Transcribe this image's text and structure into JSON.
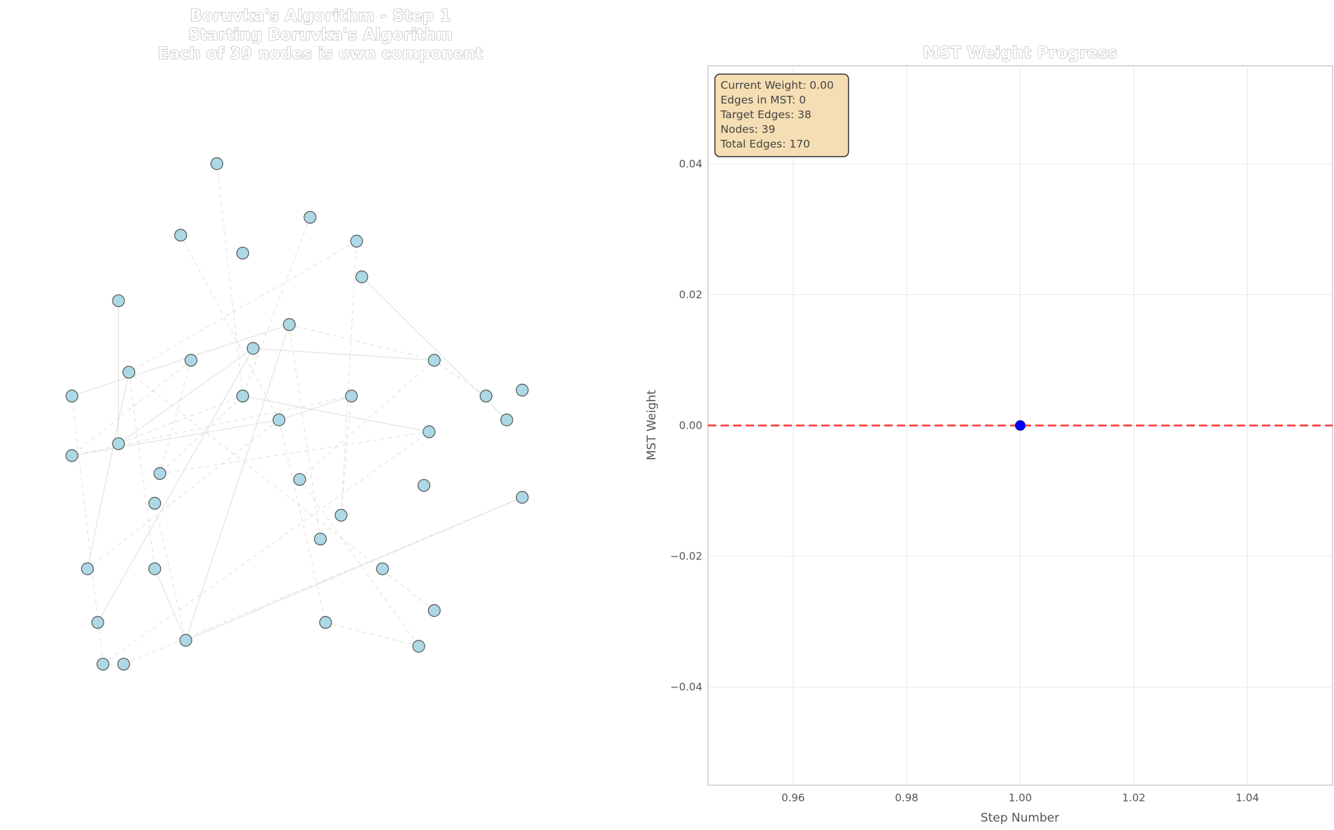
{
  "chart_data": [
    {
      "type": "network",
      "title_lines": [
        "Boruvka's Algorithm - Step 1",
        "Starting Boruvka's Algorithm",
        "Each of 39 nodes is own component"
      ],
      "node_color": "#add8e6",
      "edge_color": "#d3d3d3",
      "nodes": [
        [
          0.08,
          0.9
        ],
        [
          0.07,
          0.83
        ],
        [
          0.24,
          0.86
        ],
        [
          0.3,
          0.06
        ],
        [
          0.48,
          0.15
        ],
        [
          0.58,
          0.25
        ],
        [
          0.86,
          0.49
        ],
        [
          0.89,
          0.44
        ],
        [
          0.71,
          0.51
        ],
        [
          0.72,
          0.39
        ],
        [
          0.82,
          0.45
        ],
        [
          0.51,
          0.83
        ],
        [
          0.72,
          0.81
        ],
        [
          0.57,
          0.19
        ],
        [
          0.89,
          0.62
        ],
        [
          0.35,
          0.21
        ],
        [
          0.44,
          0.33
        ],
        [
          0.23,
          0.18
        ],
        [
          0.5,
          0.69
        ],
        [
          0.69,
          0.87
        ],
        [
          0.18,
          0.63
        ],
        [
          0.25,
          0.39
        ],
        [
          0.37,
          0.37
        ],
        [
          0.02,
          0.45
        ],
        [
          0.7,
          0.6
        ],
        [
          0.02,
          0.55
        ],
        [
          0.18,
          0.74
        ],
        [
          0.11,
          0.29
        ],
        [
          0.19,
          0.58
        ],
        [
          0.46,
          0.59
        ],
        [
          0.05,
          0.74
        ],
        [
          0.12,
          0.9
        ],
        [
          0.62,
          0.74
        ],
        [
          0.54,
          0.65
        ],
        [
          0.35,
          0.45
        ],
        [
          0.42,
          0.49
        ],
        [
          0.13,
          0.41
        ],
        [
          0.11,
          0.53
        ],
        [
          0.56,
          0.45
        ]
      ],
      "edges": [
        [
          27,
          37
        ],
        [
          17,
          35
        ],
        [
          35,
          11
        ],
        [
          35,
          38
        ],
        [
          13,
          36
        ],
        [
          0,
          23
        ],
        [
          2,
          26
        ],
        [
          37,
          34
        ],
        [
          21,
          28
        ],
        [
          22,
          9
        ],
        [
          38,
          33
        ],
        [
          35,
          30
        ],
        [
          36,
          30
        ],
        [
          29,
          9
        ],
        [
          38,
          25
        ],
        [
          25,
          35
        ],
        [
          34,
          28
        ],
        [
          28,
          8
        ],
        [
          34,
          8
        ],
        [
          18,
          16
        ],
        [
          2,
          20
        ],
        [
          22,
          1
        ],
        [
          0,
          8
        ],
        [
          12,
          36
        ],
        [
          2,
          14
        ],
        [
          3,
          34
        ],
        [
          9,
          16
        ],
        [
          6,
          5
        ],
        [
          10,
          9
        ],
        [
          21,
          25
        ],
        [
          37,
          22
        ],
        [
          13,
          33
        ],
        [
          29,
          19
        ],
        [
          16,
          2
        ],
        [
          36,
          26
        ],
        [
          31,
          14
        ],
        [
          23,
          16
        ],
        [
          4,
          34
        ],
        [
          19,
          11
        ]
      ]
    },
    {
      "type": "line",
      "title": "MST Weight Progress",
      "xlabel": "Step Number",
      "ylabel": "MST Weight",
      "x": [
        1.0
      ],
      "y": [
        0.0
      ],
      "point_color": "#0000ff",
      "reference_line": {
        "y": 0.0,
        "style": "dashed",
        "color": "#ff0000"
      },
      "xlim": [
        0.945,
        1.055
      ],
      "ylim": [
        -0.055,
        0.055
      ],
      "xticks": [
        "0.96",
        "0.98",
        "1.00",
        "1.02",
        "1.04"
      ],
      "yticks": [
        "−0.04",
        "−0.02",
        "0.00",
        "0.02",
        "0.04"
      ],
      "grid": true,
      "info_box": {
        "lines": [
          "Current Weight: 0.00",
          "Edges in MST: 0",
          "Target Edges: 38",
          "Nodes: 39",
          "Total Edges: 170"
        ],
        "background": "#f5deb3"
      }
    }
  ]
}
